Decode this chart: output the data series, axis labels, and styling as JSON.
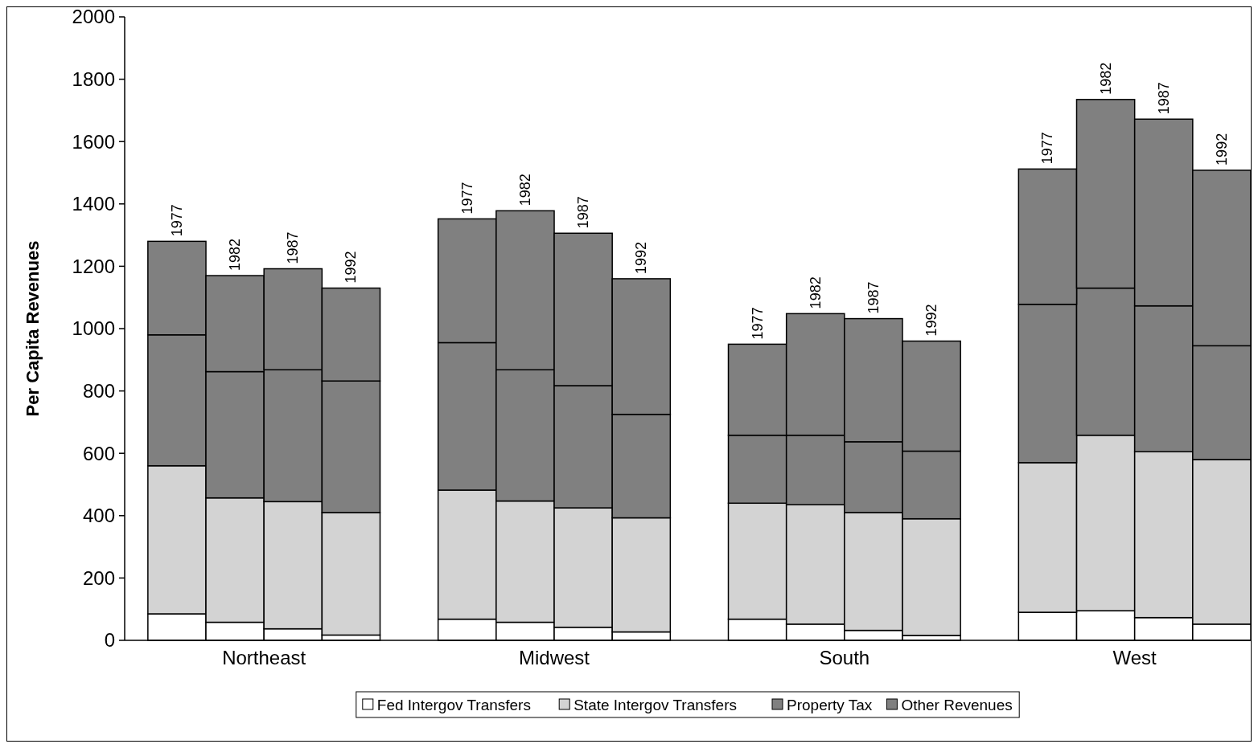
{
  "chart_data": {
    "type": "bar",
    "stacked": true,
    "ylabel": "Per Capita Revenues",
    "categories": [
      null,
      null,
      null,
      null,
      null,
      null,
      null,
      null,
      null,
      null,
      null,
      null,
      null,
      null,
      null,
      null
    ],
    "annotations": [
      "Northeast",
      "Midwest",
      "South",
      "West",
      "1977",
      "1982",
      "1987",
      "1992",
      "1977",
      "1982",
      "1987",
      "1992",
      "1977",
      "1982",
      "1987",
      "1992",
      "1977",
      "1982",
      "1987",
      "1992"
    ],
    "series": [
      {
        "name": "Fed Intergov Transfers",
        "color": "#ffffff",
        "values": [
          85,
          58,
          37,
          17,
          68,
          58,
          42,
          27,
          68,
          52,
          32,
          16,
          90,
          95,
          73,
          52
        ]
      },
      {
        "name": "State Intergov Transfers",
        "color": "#d3d3d3",
        "values": [
          475,
          399,
          408,
          393,
          414,
          389,
          383,
          366,
          372,
          383,
          378,
          374,
          480,
          563,
          532,
          528
        ]
      },
      {
        "name": "Property Tax",
        "color": "#808080",
        "values": [
          420,
          405,
          423,
          422,
          473,
          421,
          392,
          332,
          218,
          223,
          227,
          217,
          508,
          472,
          468,
          365
        ]
      },
      {
        "name": "Other Revenues",
        "color": "#808080",
        "values": [
          300,
          308,
          324,
          298,
          397,
          510,
          489,
          435,
          292,
          390,
          395,
          353,
          434,
          605,
          599,
          563
        ]
      }
    ],
    "ylim": [
      0,
      2000
    ],
    "yticks": [
      0,
      200,
      400,
      600,
      800,
      1000,
      1200,
      1400,
      1600,
      1800,
      2000
    ],
    "legend": "bottom",
    "grid": false
  }
}
